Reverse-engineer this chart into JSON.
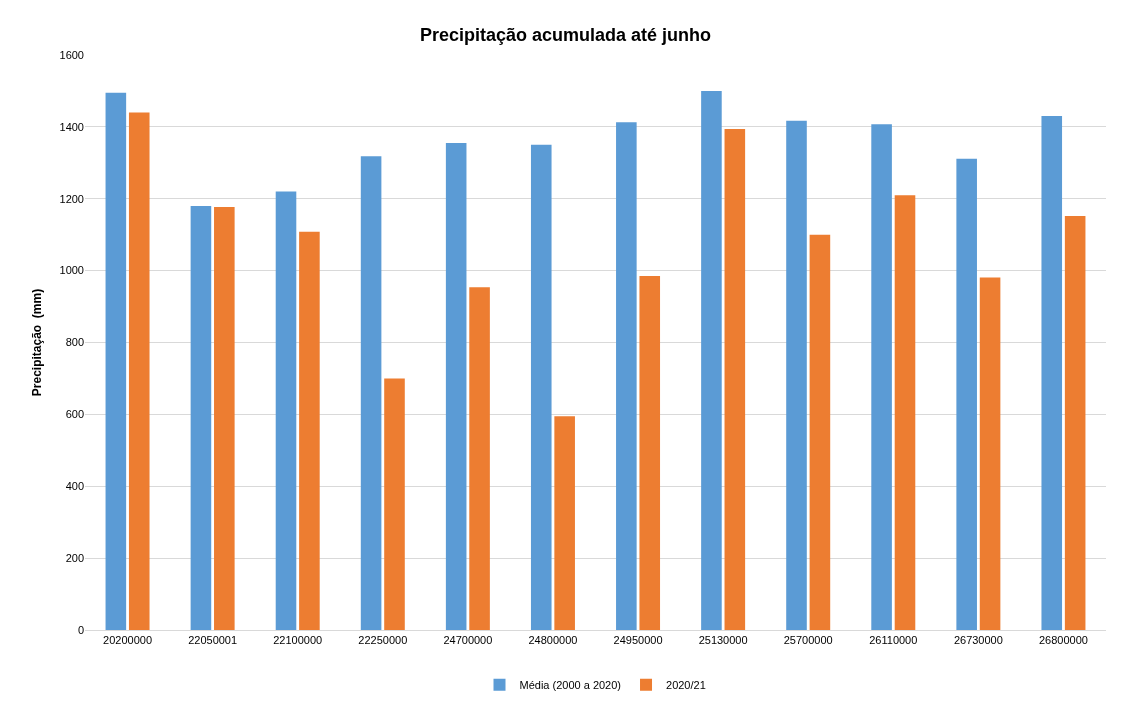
{
  "chart_data": {
    "type": "bar",
    "title": "Precipitação acumulada até junho",
    "ylabel": "Precipitação  (mm)",
    "categories": [
      "20200000",
      "22050001",
      "22100000",
      "22250000",
      "24700000",
      "24800000",
      "24950000",
      "25130000",
      "25700000",
      "26110000",
      "26730000",
      "26800000"
    ],
    "series": [
      {
        "name": "Média (2000 a 2020)",
        "color": "#5b9bd5",
        "values": [
          1495,
          1180,
          1220,
          1318,
          1355,
          1350,
          1413,
          1500,
          1417,
          1407,
          1311,
          1430
        ]
      },
      {
        "name": "2020/21",
        "color": "#ed7d31",
        "values": [
          1440,
          1177,
          1108,
          700,
          954,
          595,
          985,
          1394,
          1100,
          1210,
          981,
          1152
        ]
      }
    ],
    "ylim": [
      0,
      1600
    ],
    "yticks": [
      0,
      200,
      400,
      600,
      800,
      1000,
      1200,
      1400,
      1600
    ],
    "grid": "y",
    "legend": "bottom"
  }
}
